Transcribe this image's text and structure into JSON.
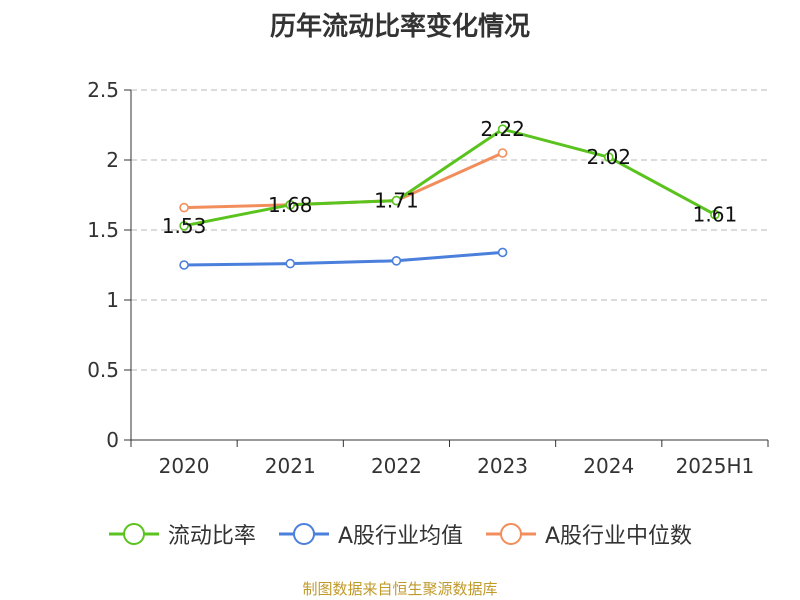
{
  "chart_data": {
    "type": "line",
    "title": "历年流动比率变化情况",
    "categories": [
      "2020",
      "2021",
      "2022",
      "2023",
      "2024",
      "2025H1"
    ],
    "ylim": [
      0,
      2.5
    ],
    "yticks": [
      "0",
      "0.5",
      "1",
      "1.5",
      "2",
      "2.5"
    ],
    "grid": true,
    "legend_position": "bottom",
    "series": [
      {
        "name": "流动比率",
        "color": "#5ac31e",
        "values": [
          1.53,
          1.68,
          1.71,
          2.22,
          2.02,
          1.61
        ],
        "labels": [
          "1.53",
          "1.68",
          "1.71",
          "2.22",
          "2.02",
          "1.61"
        ]
      },
      {
        "name": "A股行业均值",
        "color": "#4a7fdc",
        "values": [
          1.25,
          1.26,
          1.28,
          1.34,
          null,
          null
        ]
      },
      {
        "name": "A股行业中位数",
        "color": "#f28e5c",
        "values": [
          1.66,
          1.68,
          1.71,
          2.05,
          null,
          null
        ]
      }
    ]
  },
  "source": "制图数据来自恒生聚源数据库"
}
